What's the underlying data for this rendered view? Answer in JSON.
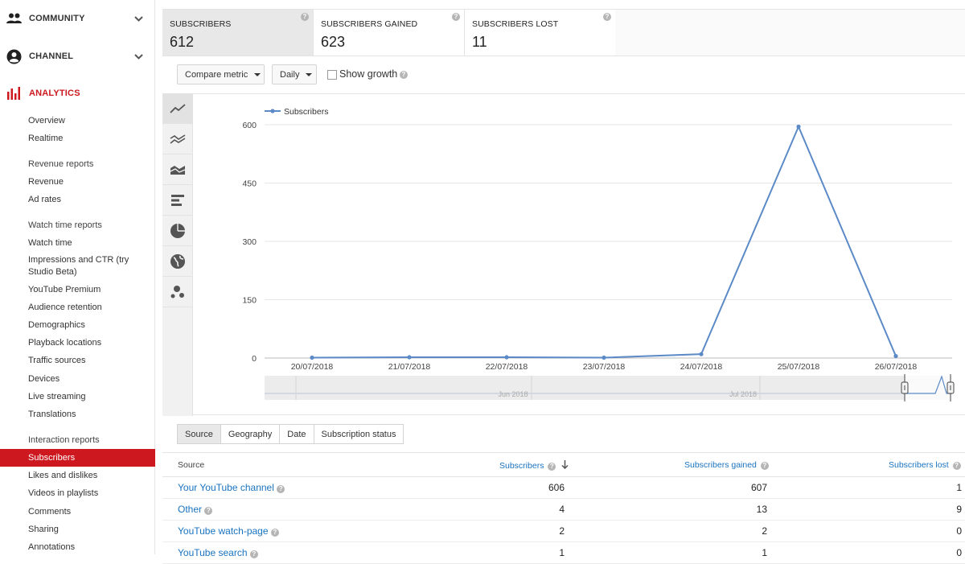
{
  "sidebar": {
    "sections": [
      {
        "label": "COMMUNITY",
        "icon": "community-icon"
      },
      {
        "label": "CHANNEL",
        "icon": "account-icon"
      },
      {
        "label": "ANALYTICS",
        "icon": "analytics-icon"
      }
    ],
    "items": [
      {
        "label": "Overview"
      },
      {
        "label": "Realtime"
      },
      {
        "label": "Revenue reports"
      },
      {
        "label": "Revenue"
      },
      {
        "label": "Ad rates"
      },
      {
        "label": "Watch time reports"
      },
      {
        "label": "Watch time"
      },
      {
        "label": "Impressions and CTR (try Studio Beta)"
      },
      {
        "label": "YouTube Premium"
      },
      {
        "label": "Audience retention"
      },
      {
        "label": "Demographics"
      },
      {
        "label": "Playback locations"
      },
      {
        "label": "Traffic sources"
      },
      {
        "label": "Devices"
      },
      {
        "label": "Live streaming"
      },
      {
        "label": "Translations"
      },
      {
        "label": "Interaction reports"
      },
      {
        "label": "Subscribers"
      },
      {
        "label": "Likes and dislikes"
      },
      {
        "label": "Videos in playlists"
      },
      {
        "label": "Comments"
      },
      {
        "label": "Sharing"
      },
      {
        "label": "Annotations"
      }
    ]
  },
  "metrics": [
    {
      "title": "SUBSCRIBERS",
      "value": "612"
    },
    {
      "title": "SUBSCRIBERS GAINED",
      "value": "623"
    },
    {
      "title": "SUBSCRIBERS LOST",
      "value": "11"
    }
  ],
  "controls": {
    "compare": "Compare metric",
    "period": "Daily",
    "show_growth": "Show growth",
    "help": "?"
  },
  "chart_data": {
    "type": "line",
    "series": [
      {
        "name": "Subscribers",
        "values": [
          1,
          2,
          2,
          1,
          10,
          595,
          5
        ]
      }
    ],
    "categories": [
      "20/07/2018",
      "21/07/2018",
      "22/07/2018",
      "23/07/2018",
      "24/07/2018",
      "25/07/2018",
      "26/07/2018"
    ],
    "y_ticks": [
      "0",
      "150",
      "300",
      "450",
      "600"
    ],
    "ylim": [
      0,
      600
    ],
    "color": "#5b8ac7",
    "timeline_labels": [
      "Jun 2018",
      "Jul 2018"
    ]
  },
  "tabs": [
    "Source",
    "Geography",
    "Date",
    "Subscription status"
  ],
  "table": {
    "headers": {
      "source": "Source",
      "subs": "Subscribers",
      "gained": "Subscribers gained",
      "lost": "Subscribers lost"
    },
    "rows": [
      {
        "source": "Your YouTube channel",
        "subs": "606",
        "gained": "607",
        "lost": "1"
      },
      {
        "source": "Other",
        "subs": "4",
        "gained": "13",
        "lost": "9"
      },
      {
        "source": "YouTube watch-page",
        "subs": "2",
        "gained": "2",
        "lost": "0"
      },
      {
        "source": "YouTube search",
        "subs": "1",
        "gained": "1",
        "lost": "0"
      }
    ]
  }
}
